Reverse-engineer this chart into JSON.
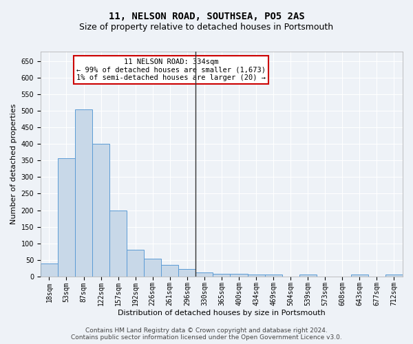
{
  "title": "11, NELSON ROAD, SOUTHSEA, PO5 2AS",
  "subtitle": "Size of property relative to detached houses in Portsmouth",
  "xlabel": "Distribution of detached houses by size in Portsmouth",
  "ylabel": "Number of detached properties",
  "bar_color": "#c8d8e8",
  "bar_edge_color": "#5b9bd5",
  "vline_color": "#333333",
  "vline_x_idx": 9,
  "categories": [
    "18sqm",
    "53sqm",
    "87sqm",
    "122sqm",
    "157sqm",
    "192sqm",
    "226sqm",
    "261sqm",
    "296sqm",
    "330sqm",
    "365sqm",
    "400sqm",
    "434sqm",
    "469sqm",
    "504sqm",
    "539sqm",
    "573sqm",
    "608sqm",
    "643sqm",
    "677sqm",
    "712sqm"
  ],
  "values": [
    38,
    357,
    505,
    400,
    200,
    80,
    53,
    35,
    22,
    12,
    8,
    8,
    5,
    5,
    0,
    5,
    0,
    0,
    5,
    0,
    5
  ],
  "ylim": [
    0,
    680
  ],
  "yticks": [
    0,
    50,
    100,
    150,
    200,
    250,
    300,
    350,
    400,
    450,
    500,
    550,
    600,
    650
  ],
  "annotation_title": "11 NELSON ROAD: 334sqm",
  "annotation_line1": "← 99% of detached houses are smaller (1,673)",
  "annotation_line2": "1% of semi-detached houses are larger (20) →",
  "footer_line1": "Contains HM Land Registry data © Crown copyright and database right 2024.",
  "footer_line2": "Contains public sector information licensed under the Open Government Licence v3.0.",
  "background_color": "#eef2f7",
  "plot_background": "#eef2f7",
  "grid_color": "#ffffff",
  "annotation_box_color": "#ffffff",
  "annotation_border_color": "#cc0000",
  "title_fontsize": 10,
  "subtitle_fontsize": 9,
  "axis_label_fontsize": 8,
  "tick_fontsize": 7,
  "annotation_fontsize": 7.5,
  "footer_fontsize": 6.5
}
